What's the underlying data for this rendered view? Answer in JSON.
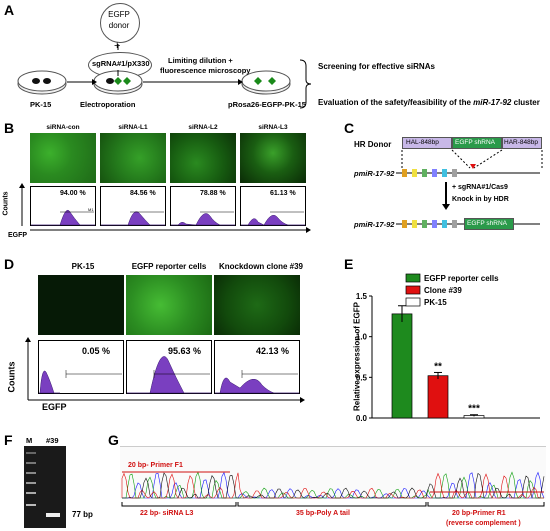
{
  "panelA": {
    "letter": "A",
    "egfp_donor": [
      "EGFP",
      "donor"
    ],
    "plus": "+",
    "plasmid": "sgRNA#1/pX330",
    "cell_left": "PK-15",
    "step1": "Electroporation",
    "step2_line1": "Limiting dilution +",
    "step2_line2": "fluorescence microscopy",
    "cell_right": "pRosa26-EGFP-PK-15",
    "out1": "Screening for effective siRNAs",
    "out2_pre": "Evaluation of the safety/feasibility of the ",
    "out2_gene": "miR-17-92",
    "out2_post": " cluster"
  },
  "panelB": {
    "letter": "B",
    "labels": [
      "siRNA-con",
      "siRNA-L1",
      "siRNA-L2",
      "siRNA-L3"
    ],
    "percents": [
      "94.00 %",
      "84.56 %",
      "78.88 %",
      "61.13 %"
    ],
    "y_label": "Counts",
    "x_label": "EGFP",
    "gate": "M1"
  },
  "panelC": {
    "letter": "C",
    "hr_donor": "HR Donor",
    "hal": "HAL-848bp",
    "shrna": "EGFP shRNA",
    "har": "HAR-848bp",
    "locus": "pmiR-17-92",
    "step1": "+ sgRNA#1/Cas9",
    "step2": "Knock in by HDR",
    "locus2": "pmiR-17-92",
    "shrna2": "EGFP shRNA"
  },
  "panelD": {
    "letter": "D",
    "labels": [
      "PK-15",
      "EGFP  reporter  cells",
      "Knockdown clone #39"
    ],
    "percents": [
      "0.05 %",
      "95.63 %",
      "42.13 %"
    ],
    "y_label": "Counts",
    "x_label": "EGFP",
    "gate": "M1"
  },
  "panelE": {
    "letter": "E",
    "chart_data": {
      "type": "bar",
      "categories": [
        "EGFP reporter cells",
        "Clone #39",
        "PK-15"
      ],
      "values": [
        1.28,
        0.52,
        0.03
      ],
      "errors": [
        0.1,
        0.04,
        0.01
      ],
      "significance": [
        "",
        "**",
        "***"
      ],
      "ylabel": "Relative expression of EGFP",
      "ylim": [
        0,
        1.5
      ],
      "yticks": [
        "0.0",
        "0.5",
        "1.0",
        "1.5"
      ],
      "legend": [
        "EGFP reporter cells",
        "Clone #39",
        "PK-15"
      ],
      "colors": [
        "#1e8a1e",
        "#e01010",
        "#ffffff"
      ]
    }
  },
  "panelF": {
    "letter": "F",
    "lane_m": "M",
    "lane_39": "#39",
    "band": "77 bp"
  },
  "panelG": {
    "letter": "G",
    "primer_f1": "20 bp- Primer F1",
    "sirna": "22 bp- siRNA L3",
    "polya": "35 bp-Poly A tail",
    "primer_r1_l1": "20 bp-Primer  R1",
    "primer_r1_l2": "(reverse complement )"
  }
}
